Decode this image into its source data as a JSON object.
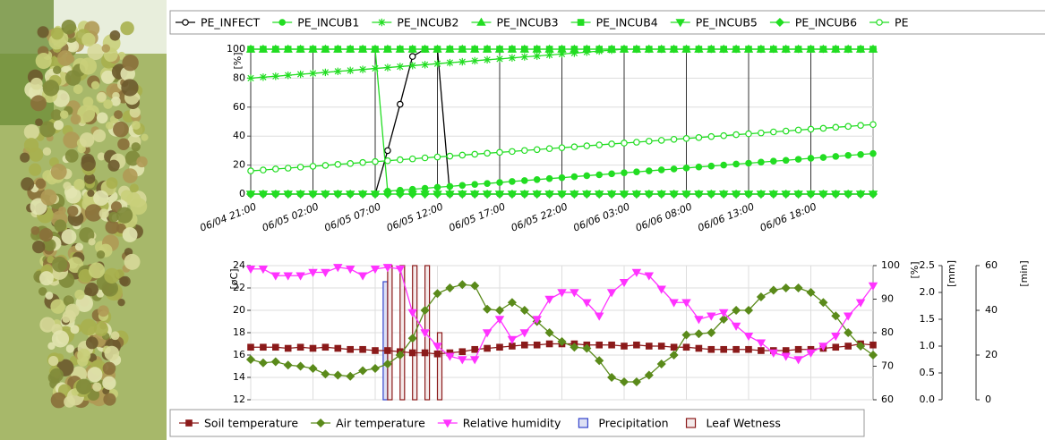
{
  "chart_data": [
    {
      "type": "line",
      "y_label": "[%]",
      "categories": [
        "06/04 21:00",
        null,
        null,
        null,
        null,
        "06/05 02:00",
        null,
        null,
        null,
        null,
        "06/05 07:00",
        null,
        null,
        null,
        null,
        "06/05 12:00",
        null,
        null,
        null,
        null,
        "06/05 17:00",
        null,
        null,
        null,
        null,
        "06/05 22:00",
        null,
        null,
        null,
        null,
        "06/06 03:00",
        null,
        null,
        null,
        null,
        "06/06 08:00",
        null,
        null,
        null,
        null,
        "06/06 13:00",
        null,
        null,
        null,
        null,
        "06/06 18:00",
        null,
        null,
        null,
        null,
        null
      ],
      "ylim": [
        0,
        100
      ],
      "yticks": [
        0,
        20,
        40,
        60,
        80,
        100
      ],
      "grid": true,
      "legend": "top",
      "series": [
        {
          "name": "PE_INFECT",
          "color": "#000000",
          "marker": "circle-open",
          "values": [
            0,
            0,
            0,
            0,
            0,
            0,
            0,
            0,
            0,
            0,
            0,
            30,
            62,
            95,
            100,
            100,
            0,
            0,
            0,
            0,
            0,
            0,
            0,
            0,
            0,
            0,
            0,
            0,
            0,
            0,
            0,
            0,
            0,
            0,
            0,
            0,
            0,
            0,
            0,
            0,
            0,
            0,
            0,
            0,
            0,
            0,
            0,
            0,
            0,
            0,
            0
          ]
        },
        {
          "name": "PE_INCUB1",
          "color": "#22dd22",
          "marker": "circle",
          "values": [
            100,
            100,
            100,
            100,
            100,
            100,
            100,
            100,
            100,
            100,
            100,
            2,
            2.7,
            3.3,
            4,
            4.7,
            5.3,
            6,
            6.7,
            7.3,
            8,
            8.7,
            9.3,
            10,
            10.7,
            11.3,
            12,
            12.7,
            13.3,
            14,
            14.7,
            15.3,
            16,
            16.7,
            17.3,
            18,
            18.7,
            19.3,
            20,
            20.7,
            21.3,
            22,
            22.7,
            23.3,
            24,
            24.7,
            25.3,
            26,
            26.7,
            27.3,
            28
          ]
        },
        {
          "name": "PE_INCUB2",
          "color": "#22dd22",
          "marker": "asterisk",
          "values": [
            80,
            80.7,
            81.3,
            82,
            82.7,
            83.3,
            84,
            84.7,
            85.3,
            86,
            86.7,
            87.3,
            88,
            88.7,
            89.3,
            90,
            90.7,
            91.3,
            92,
            92.7,
            93.3,
            94,
            94.7,
            95.3,
            96,
            96.7,
            97.3,
            98,
            98.7,
            99.3,
            100,
            100,
            100,
            100,
            100,
            100,
            100,
            100,
            100,
            100,
            100,
            100,
            100,
            100,
            100,
            100,
            100,
            100,
            100,
            100,
            100
          ]
        },
        {
          "name": "PE_INCUB3",
          "color": "#22dd22",
          "marker": "triangle",
          "values": [
            100,
            100,
            100,
            100,
            100,
            100,
            100,
            100,
            100,
            100,
            100,
            100,
            100,
            100,
            100,
            100,
            100,
            100,
            100,
            100,
            100,
            100,
            100,
            100,
            100,
            100,
            100,
            100,
            100,
            100,
            100,
            100,
            100,
            100,
            100,
            100,
            100,
            100,
            100,
            100,
            100,
            100,
            100,
            100,
            100,
            100,
            100,
            100,
            100,
            100,
            100
          ]
        },
        {
          "name": "PE_INCUB4",
          "color": "#22dd22",
          "marker": "square",
          "values": [
            100,
            100,
            100,
            100,
            100,
            100,
            100,
            100,
            100,
            100,
            100,
            100,
            100,
            100,
            100,
            100,
            100,
            100,
            100,
            100,
            100,
            100,
            100,
            100,
            100,
            100,
            100,
            100,
            100,
            100,
            100,
            100,
            100,
            100,
            100,
            100,
            100,
            100,
            100,
            100,
            100,
            100,
            100,
            100,
            100,
            100,
            100,
            100,
            100,
            100,
            100
          ]
        },
        {
          "name": "PE_INCUB5",
          "color": "#22dd22",
          "marker": "triangle-down",
          "values": [
            0,
            0,
            0,
            0,
            0,
            0,
            0,
            0,
            0,
            0,
            0,
            0,
            0,
            0,
            0,
            0,
            0,
            0,
            0,
            0,
            0,
            0,
            0,
            0,
            0,
            0,
            0,
            0,
            0,
            0,
            0,
            0,
            0,
            0,
            0,
            0,
            0,
            0,
            0,
            0,
            0,
            0,
            0,
            0,
            0,
            0,
            0,
            0,
            0,
            0,
            0
          ]
        },
        {
          "name": "PE_INCUB6",
          "color": "#22dd22",
          "marker": "diamond",
          "values": [
            0,
            0,
            0,
            0,
            0,
            0,
            0,
            0,
            0,
            0,
            0,
            0,
            0,
            0,
            0,
            0,
            0,
            0,
            0,
            0,
            0,
            0,
            0,
            0,
            0,
            0,
            0,
            0,
            0,
            0,
            0,
            0,
            0,
            0,
            0,
            0,
            0,
            0,
            0,
            0,
            0,
            0,
            0,
            0,
            0,
            0,
            0,
            0,
            0,
            0,
            0
          ]
        },
        {
          "name": "PE",
          "color": "#22dd22",
          "marker": "circle-open",
          "values": [
            16,
            16.6,
            17.3,
            17.9,
            18.6,
            19.2,
            19.8,
            20.5,
            21.1,
            21.8,
            22.4,
            23,
            23.7,
            24.3,
            25,
            25.6,
            26.2,
            26.9,
            27.5,
            28.2,
            28.8,
            29.4,
            30.1,
            30.7,
            31.4,
            32,
            32.6,
            33.3,
            33.9,
            34.6,
            35.2,
            35.8,
            36.5,
            37.1,
            37.8,
            38.4,
            39,
            39.7,
            40.3,
            41,
            41.6,
            42.2,
            42.9,
            43.5,
            44.2,
            44.8,
            45.4,
            46.1,
            46.7,
            47.4,
            48
          ]
        }
      ]
    },
    {
      "type": "line",
      "y_label": "[øC]",
      "y2_label": "[%]",
      "y3_label": "[mm]",
      "y4_label": "[min]",
      "ylim": [
        12,
        24
      ],
      "yticks": [
        12,
        14,
        16,
        18,
        20,
        22,
        24
      ],
      "y2lim": [
        60,
        100
      ],
      "y2ticks": [
        60,
        70,
        80,
        90,
        100
      ],
      "y3lim": [
        0,
        2.5
      ],
      "y3ticks": [
        {
          "value": 0,
          "label": "0.0"
        },
        0.5,
        {
          "value": 1,
          "label": "1.0"
        },
        1.5,
        {
          "value": 2,
          "label": "2.0"
        },
        2.5
      ],
      "y4lim": [
        0,
        60
      ],
      "y4ticks": [
        0,
        20,
        40,
        60
      ],
      "grid": true,
      "legend": "bottom",
      "series": [
        {
          "name": "Soil temperature",
          "type": "line",
          "color": "#8b1a1a",
          "marker": "square",
          "axis": "y",
          "values": [
            16.7,
            16.7,
            16.7,
            16.6,
            16.7,
            16.6,
            16.7,
            16.6,
            16.5,
            16.5,
            16.4,
            16.4,
            16.3,
            16.2,
            16.2,
            16.1,
            16.2,
            16.3,
            16.5,
            16.6,
            16.7,
            16.8,
            16.9,
            16.9,
            17,
            17,
            17,
            16.9,
            16.9,
            16.9,
            16.8,
            16.9,
            16.8,
            16.8,
            16.7,
            16.7,
            16.6,
            16.5,
            16.5,
            16.5,
            16.5,
            16.4,
            16.4,
            16.4,
            16.5,
            16.5,
            16.6,
            16.7,
            16.8,
            17,
            16.9
          ]
        },
        {
          "name": "Air temperature",
          "type": "line",
          "color": "#5a8a1a",
          "marker": "diamond",
          "axis": "y",
          "values": [
            15.6,
            15.3,
            15.4,
            15.1,
            15,
            14.8,
            14.3,
            14.2,
            14.1,
            14.6,
            14.8,
            15.2,
            16,
            17.5,
            20,
            21.5,
            22,
            22.3,
            22.2,
            20.1,
            20,
            20.7,
            20,
            19,
            18,
            17.2,
            16.7,
            16.6,
            15.5,
            14,
            13.6,
            13.6,
            14.2,
            15.2,
            16,
            17.8,
            17.9,
            18,
            19.2,
            20,
            20,
            21.2,
            21.8,
            22,
            22,
            21.6,
            20.7,
            19.5,
            18,
            16.8,
            16
          ]
        },
        {
          "name": "Relative humidity",
          "type": "line",
          "color": "#ff33ff",
          "marker": "triangle-down",
          "axis": "y2",
          "values": [
            99,
            99,
            97,
            97,
            97,
            98,
            98,
            99.5,
            99,
            97,
            99,
            99.5,
            99,
            86,
            80,
            76,
            73,
            72,
            72,
            80,
            84,
            78,
            80,
            84,
            90,
            92,
            92,
            89,
            85,
            92,
            95,
            98,
            97,
            93,
            89,
            89,
            84,
            85,
            86,
            82,
            79,
            77,
            74,
            73,
            72,
            74,
            76,
            79,
            85,
            89,
            94
          ]
        },
        {
          "name": "Precipitation",
          "type": "bar",
          "color": "#3344cc",
          "fill": "#dde0f4",
          "axis": "y3",
          "values": [
            0,
            0,
            0,
            0,
            0,
            0,
            0,
            0,
            0,
            0,
            0,
            2.2,
            0,
            0,
            0,
            0,
            0,
            0,
            0,
            0,
            0,
            0,
            0,
            0,
            0,
            0,
            0,
            0,
            0,
            0,
            0,
            0,
            0,
            0,
            0,
            0,
            0,
            0,
            0,
            0,
            0,
            0,
            0,
            0,
            0,
            0,
            0,
            0,
            0,
            0,
            0
          ]
        },
        {
          "name": "Leaf Wetness",
          "type": "bar",
          "color": "#8b1a1a",
          "fill": "#f4eaea",
          "axis": "y4",
          "values": [
            0,
            0,
            0,
            0,
            0,
            0,
            0,
            0,
            0,
            0,
            0,
            60,
            60,
            60,
            60,
            30,
            0,
            0,
            0,
            0,
            0,
            0,
            0,
            0,
            0,
            0,
            0,
            0,
            0,
            0,
            0,
            0,
            0,
            0,
            0,
            0,
            0,
            0,
            0,
            0,
            0,
            0,
            0,
            0,
            0,
            0,
            0,
            0,
            0,
            0,
            0
          ]
        }
      ]
    }
  ]
}
